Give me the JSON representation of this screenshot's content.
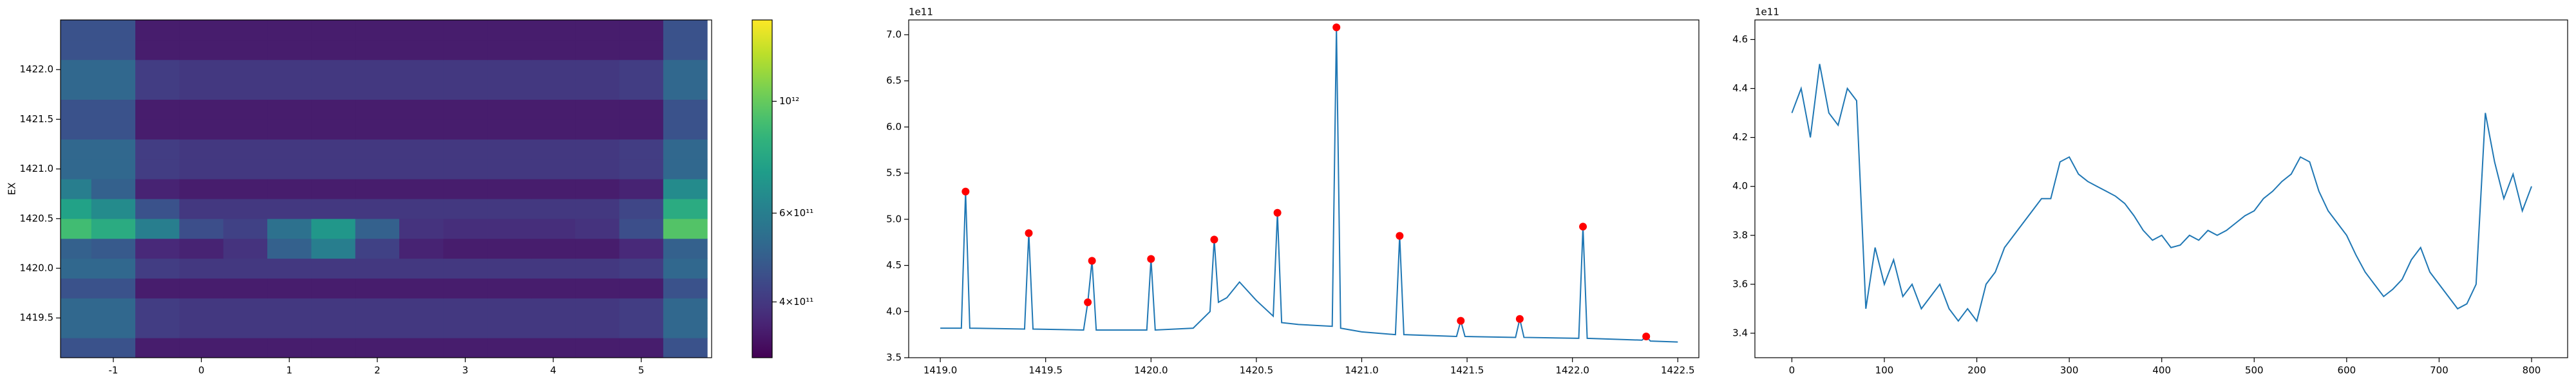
{
  "chart_data": [
    {
      "type": "heatmap",
      "ylabel": "EX",
      "x": [
        -1.5,
        -1,
        -0.5,
        0,
        0.5,
        1,
        1.5,
        2,
        2.5,
        3,
        3.5,
        4,
        4.5,
        5,
        5.5
      ],
      "y": [
        1419.2,
        1419.4,
        1419.6,
        1419.8,
        1420.0,
        1420.2,
        1420.4,
        1420.6,
        1420.8,
        1421.0,
        1421.2,
        1421.4,
        1421.6,
        1421.8,
        1422.0,
        1422.2,
        1422.4
      ],
      "z": [
        [
          460000000000.0,
          460000000000.0,
          350000000000.0,
          350000000000.0,
          350000000000.0,
          350000000000.0,
          350000000000.0,
          350000000000.0,
          350000000000.0,
          350000000000.0,
          350000000000.0,
          350000000000.0,
          350000000000.0,
          350000000000.0,
          460000000000.0
        ],
        [
          520000000000.0,
          520000000000.0,
          410000000000.0,
          400000000000.0,
          400000000000.0,
          400000000000.0,
          400000000000.0,
          400000000000.0,
          400000000000.0,
          400000000000.0,
          400000000000.0,
          400000000000.0,
          400000000000.0,
          410000000000.0,
          520000000000.0
        ],
        [
          520000000000.0,
          520000000000.0,
          410000000000.0,
          400000000000.0,
          400000000000.0,
          400000000000.0,
          400000000000.0,
          400000000000.0,
          400000000000.0,
          400000000000.0,
          400000000000.0,
          400000000000.0,
          400000000000.0,
          410000000000.0,
          520000000000.0
        ],
        [
          460000000000.0,
          460000000000.0,
          350000000000.0,
          350000000000.0,
          350000000000.0,
          350000000000.0,
          350000000000.0,
          350000000000.0,
          350000000000.0,
          350000000000.0,
          350000000000.0,
          350000000000.0,
          350000000000.0,
          350000000000.0,
          460000000000.0
        ],
        [
          520000000000.0,
          520000000000.0,
          410000000000.0,
          400000000000.0,
          400000000000.0,
          400000000000.0,
          400000000000.0,
          400000000000.0,
          400000000000.0,
          400000000000.0,
          400000000000.0,
          400000000000.0,
          400000000000.0,
          410000000000.0,
          520000000000.0
        ],
        [
          500000000000.0,
          480000000000.0,
          370000000000.0,
          360000000000.0,
          390000000000.0,
          500000000000.0,
          600000000000.0,
          420000000000.0,
          360000000000.0,
          350000000000.0,
          350000000000.0,
          350000000000.0,
          350000000000.0,
          370000000000.0,
          500000000000.0
        ],
        [
          900000000000.0,
          800000000000.0,
          600000000000.0,
          450000000000.0,
          420000000000.0,
          550000000000.0,
          700000000000.0,
          500000000000.0,
          390000000000.0,
          380000000000.0,
          380000000000.0,
          380000000000.0,
          390000000000.0,
          450000000000.0,
          950000000000.0
        ],
        [
          750000000000.0,
          650000000000.0,
          460000000000.0,
          400000000000.0,
          400000000000.0,
          400000000000.0,
          400000000000.0,
          400000000000.0,
          400000000000.0,
          400000000000.0,
          400000000000.0,
          400000000000.0,
          400000000000.0,
          430000000000.0,
          800000000000.0
        ],
        [
          600000000000.0,
          500000000000.0,
          360000000000.0,
          350000000000.0,
          350000000000.0,
          350000000000.0,
          350000000000.0,
          350000000000.0,
          350000000000.0,
          350000000000.0,
          350000000000.0,
          350000000000.0,
          350000000000.0,
          360000000000.0,
          650000000000.0
        ],
        [
          520000000000.0,
          520000000000.0,
          410000000000.0,
          400000000000.0,
          400000000000.0,
          400000000000.0,
          400000000000.0,
          400000000000.0,
          400000000000.0,
          400000000000.0,
          400000000000.0,
          400000000000.0,
          400000000000.0,
          410000000000.0,
          520000000000.0
        ],
        [
          520000000000.0,
          520000000000.0,
          410000000000.0,
          400000000000.0,
          400000000000.0,
          400000000000.0,
          400000000000.0,
          400000000000.0,
          400000000000.0,
          400000000000.0,
          400000000000.0,
          400000000000.0,
          400000000000.0,
          410000000000.0,
          520000000000.0
        ],
        [
          460000000000.0,
          460000000000.0,
          350000000000.0,
          350000000000.0,
          350000000000.0,
          350000000000.0,
          350000000000.0,
          350000000000.0,
          350000000000.0,
          350000000000.0,
          350000000000.0,
          350000000000.0,
          350000000000.0,
          350000000000.0,
          460000000000.0
        ],
        [
          460000000000.0,
          460000000000.0,
          350000000000.0,
          350000000000.0,
          350000000000.0,
          350000000000.0,
          350000000000.0,
          350000000000.0,
          350000000000.0,
          350000000000.0,
          350000000000.0,
          350000000000.0,
          350000000000.0,
          350000000000.0,
          460000000000.0
        ],
        [
          520000000000.0,
          520000000000.0,
          410000000000.0,
          400000000000.0,
          400000000000.0,
          400000000000.0,
          400000000000.0,
          400000000000.0,
          400000000000.0,
          400000000000.0,
          400000000000.0,
          400000000000.0,
          400000000000.0,
          410000000000.0,
          520000000000.0
        ],
        [
          520000000000.0,
          520000000000.0,
          410000000000.0,
          400000000000.0,
          400000000000.0,
          400000000000.0,
          400000000000.0,
          400000000000.0,
          400000000000.0,
          400000000000.0,
          400000000000.0,
          400000000000.0,
          400000000000.0,
          410000000000.0,
          520000000000.0
        ],
        [
          460000000000.0,
          460000000000.0,
          350000000000.0,
          350000000000.0,
          350000000000.0,
          350000000000.0,
          350000000000.0,
          350000000000.0,
          350000000000.0,
          350000000000.0,
          350000000000.0,
          350000000000.0,
          350000000000.0,
          350000000000.0,
          460000000000.0
        ],
        [
          460000000000.0,
          460000000000.0,
          350000000000.0,
          350000000000.0,
          350000000000.0,
          350000000000.0,
          350000000000.0,
          350000000000.0,
          350000000000.0,
          350000000000.0,
          350000000000.0,
          350000000000.0,
          350000000000.0,
          350000000000.0,
          460000000000.0
        ]
      ],
      "xlim": [
        -1.6,
        5.8
      ],
      "ylim": [
        1419.1,
        1422.5
      ],
      "xticks": [
        -1,
        0,
        1,
        2,
        3,
        4,
        5
      ],
      "yticks": [
        1419.5,
        {
          "value": 1420,
          "label": "1420.0"
        },
        1420.5,
        {
          "value": 1421,
          "label": "1421.0"
        },
        1421.5,
        {
          "value": 1422,
          "label": "1422.0"
        }
      ],
      "colorbar": {
        "scale": "log",
        "colormap": "viridis",
        "lim": [
          310000000000.0,
          1450000000000.0
        ],
        "ticks": [
          {
            "value": 400000000000.0,
            "label": "4×10¹¹"
          },
          {
            "value": 600000000000.0,
            "label": "6×10¹¹"
          },
          {
            "value": 1000000000000.0,
            "label": "10¹²"
          }
        ]
      }
    },
    {
      "type": "line",
      "offset_label": "1e11",
      "xlim": [
        1418.85,
        1422.6
      ],
      "ylim": [
        350000000000.0,
        716000000000.0
      ],
      "xticks": [
        {
          "value": 1419,
          "label": "1419.0"
        },
        1419.5,
        {
          "value": 1420,
          "label": "1420.0"
        },
        1420.5,
        {
          "value": 1421,
          "label": "1421.0"
        },
        1421.5,
        {
          "value": 1422,
          "label": "1422.0"
        },
        1422.5
      ],
      "yticks": [
        {
          "value": 350000000000.0,
          "label": "3.5"
        },
        {
          "value": 400000000000.0,
          "label": "4.0"
        },
        {
          "value": 450000000000.0,
          "label": "4.5"
        },
        {
          "value": 500000000000.0,
          "label": "5.0"
        },
        {
          "value": 550000000000.0,
          "label": "5.5"
        },
        {
          "value": 600000000000.0,
          "label": "6.0"
        },
        {
          "value": 650000000000.0,
          "label": "6.5"
        },
        {
          "value": 700000000000.0,
          "label": "7.0"
        }
      ],
      "series": [
        {
          "color": "#1f77b4",
          "marker": "none",
          "x": [
            1419.0,
            1419.1,
            1419.12,
            1419.14,
            1419.4,
            1419.42,
            1419.44,
            1419.68,
            1419.7,
            1419.72,
            1419.74,
            1419.98,
            1420.0,
            1420.02,
            1420.2,
            1420.28,
            1420.3,
            1420.32,
            1420.36,
            1420.42,
            1420.5,
            1420.58,
            1420.6,
            1420.62,
            1420.7,
            1420.86,
            1420.88,
            1420.9,
            1421.0,
            1421.16,
            1421.18,
            1421.2,
            1421.45,
            1421.47,
            1421.49,
            1421.73,
            1421.75,
            1421.77,
            1422.03,
            1422.05,
            1422.07,
            1422.33,
            1422.35,
            1422.37,
            1422.5
          ],
          "values": [
            382000000000.0,
            382000000000.0,
            530000000000.0,
            382000000000.0,
            381000000000.0,
            485000000000.0,
            381000000000.0,
            380000000000.0,
            410000000000.0,
            455000000000.0,
            380000000000.0,
            380000000000.0,
            457000000000.0,
            380000000000.0,
            382000000000.0,
            400000000000.0,
            478000000000.0,
            410000000000.0,
            415000000000.0,
            432000000000.0,
            412000000000.0,
            395000000000.0,
            507000000000.0,
            388000000000.0,
            386000000000.0,
            384000000000.0,
            708000000000.0,
            382000000000.0,
            378000000000.0,
            375000000000.0,
            482000000000.0,
            375000000000.0,
            373000000000.0,
            390000000000.0,
            373000000000.0,
            372000000000.0,
            392000000000.0,
            372000000000.0,
            371000000000.0,
            492000000000.0,
            371000000000.0,
            369000000000.0,
            373000000000.0,
            368000000000.0,
            367000000000.0
          ]
        },
        {
          "color": "#ff0000",
          "marker": "o",
          "x": [
            1419.12,
            1419.42,
            1419.7,
            1419.72,
            1420.0,
            1420.3,
            1420.6,
            1420.88,
            1421.18,
            1421.47,
            1421.75,
            1422.05,
            1422.35
          ],
          "values": [
            530000000000.0,
            485000000000.0,
            410000000000.0,
            455000000000.0,
            457000000000.0,
            478000000000.0,
            507000000000.0,
            708000000000.0,
            482000000000.0,
            390000000000.0,
            392000000000.0,
            492000000000.0,
            373000000000.0
          ]
        }
      ]
    },
    {
      "type": "line",
      "offset_label": "1e11",
      "xlim": [
        -40,
        839
      ],
      "ylim": [
        330000000000.0,
        468000000000.0
      ],
      "xticks": [
        0,
        100,
        200,
        300,
        400,
        500,
        600,
        700,
        800
      ],
      "yticks": [
        {
          "value": 340000000000.0,
          "label": "3.4"
        },
        {
          "value": 360000000000.0,
          "label": "3.6"
        },
        {
          "value": 380000000000.0,
          "label": "3.8"
        },
        {
          "value": 400000000000.0,
          "label": "4.0"
        },
        {
          "value": 420000000000.0,
          "label": "4.2"
        },
        {
          "value": 440000000000.0,
          "label": "4.4"
        },
        {
          "value": 460000000000.0,
          "label": "4.6"
        }
      ],
      "x": [
        0,
        10,
        20,
        30,
        40,
        50,
        60,
        70,
        80,
        90,
        100,
        110,
        120,
        130,
        140,
        150,
        160,
        170,
        180,
        190,
        200,
        210,
        220,
        230,
        240,
        250,
        260,
        270,
        280,
        290,
        300,
        310,
        320,
        330,
        340,
        350,
        360,
        370,
        380,
        390,
        400,
        410,
        420,
        430,
        440,
        450,
        460,
        470,
        480,
        490,
        500,
        510,
        520,
        530,
        540,
        550,
        560,
        570,
        580,
        590,
        600,
        610,
        620,
        630,
        640,
        650,
        660,
        670,
        680,
        690,
        700,
        710,
        720,
        730,
        740,
        750,
        760,
        770,
        780,
        790,
        800
      ],
      "series": [
        {
          "color": "#1f77b4",
          "marker": "none",
          "values": [
            430000000000.0,
            440000000000.0,
            420000000000.0,
            450000000000.0,
            430000000000.0,
            425000000000.0,
            440000000000.0,
            435000000000.0,
            350000000000.0,
            375000000000.0,
            360000000000.0,
            370000000000.0,
            355000000000.0,
            360000000000.0,
            350000000000.0,
            355000000000.0,
            360000000000.0,
            350000000000.0,
            345000000000.0,
            350000000000.0,
            345000000000.0,
            360000000000.0,
            365000000000.0,
            375000000000.0,
            380000000000.0,
            385000000000.0,
            390000000000.0,
            395000000000.0,
            395000000000.0,
            410000000000.0,
            412000000000.0,
            405000000000.0,
            402000000000.0,
            400000000000.0,
            398000000000.0,
            396000000000.0,
            393000000000.0,
            388000000000.0,
            382000000000.0,
            378000000000.0,
            380000000000.0,
            375000000000.0,
            376000000000.0,
            380000000000.0,
            378000000000.0,
            382000000000.0,
            380000000000.0,
            382000000000.0,
            385000000000.0,
            388000000000.0,
            390000000000.0,
            395000000000.0,
            398000000000.0,
            402000000000.0,
            405000000000.0,
            412000000000.0,
            410000000000.0,
            398000000000.0,
            390000000000.0,
            385000000000.0,
            380000000000.0,
            372000000000.0,
            365000000000.0,
            360000000000.0,
            355000000000.0,
            358000000000.0,
            362000000000.0,
            370000000000.0,
            375000000000.0,
            365000000000.0,
            360000000000.0,
            355000000000.0,
            350000000000.0,
            352000000000.0,
            360000000000.0,
            430000000000.0,
            410000000000.0,
            395000000000.0,
            405000000000.0,
            390000000000.0,
            400000000000.0
          ]
        }
      ]
    }
  ]
}
